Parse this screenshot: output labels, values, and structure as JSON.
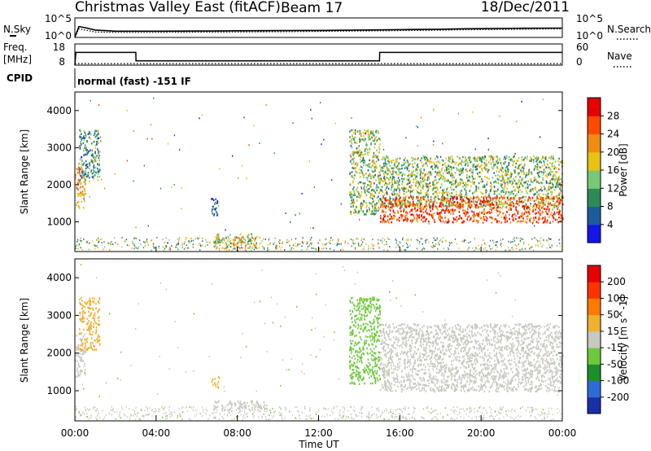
{
  "header": {
    "title": "Christmas Valley East (fitACF)",
    "beam": "Beam 17",
    "date": "18/Dec/2011"
  },
  "noise_panel": {
    "left_label": "N.Sky",
    "right_label": "N.Search",
    "left_ticks": [
      "10^5",
      "10^0"
    ],
    "right_ticks": [
      "10^5",
      "10^0"
    ]
  },
  "freq_panel": {
    "left_label_line1": "Freq.",
    "left_label_line2": "[MHz]",
    "right_label": "Nave",
    "left_ticks": [
      "18",
      "8"
    ],
    "right_ticks": [
      "60",
      "0"
    ]
  },
  "cpid": {
    "label": "CPID",
    "text": "normal (fast) -151 IF"
  },
  "chart_data": [
    {
      "type": "line",
      "title": "N.Sky / N.Search",
      "x": [
        0,
        0.2,
        0.5,
        1,
        2,
        3,
        4,
        6,
        8,
        10,
        12,
        14,
        16,
        18,
        19,
        20,
        22,
        24
      ],
      "series": [
        {
          "name": "N.Sky",
          "values": [
            0.1,
            2.8,
            2.5,
            1.9,
            1.6,
            1.6,
            1.6,
            1.65,
            1.7,
            1.75,
            1.8,
            1.9,
            2.0,
            2.1,
            2.2,
            2.25,
            2.35,
            2.4
          ]
        },
        {
          "name": "N.Search",
          "values": [
            0.1,
            2.2,
            1.9,
            1.4,
            1.3,
            1.3,
            1.3,
            1.35,
            1.4,
            1.45,
            1.55,
            1.65,
            1.75,
            1.85,
            1.95,
            2.0,
            2.1,
            2.2
          ]
        }
      ],
      "ylim": [
        0,
        5
      ],
      "xlim": [
        0,
        24
      ]
    },
    {
      "type": "line",
      "title": "Freq. / Nave",
      "x": [
        0,
        0.05,
        3.0,
        3.01,
        15.0,
        15.01,
        24
      ],
      "series": [
        {
          "name": "Freq.",
          "values": [
            8,
            14,
            14,
            10,
            10,
            14,
            14
          ]
        },
        {
          "name": "Nave",
          "values": [
            8.7,
            8.7,
            8.7,
            8.7,
            8.7,
            8.7,
            8.7
          ]
        }
      ],
      "ylim": [
        8,
        18
      ],
      "xlim": [
        0,
        24
      ]
    },
    {
      "type": "heatmap",
      "title": "Power [dB]",
      "xlabel": "",
      "ylabel": "Slant Range [km]",
      "xlim": [
        0,
        24
      ],
      "ylim": [
        200,
        4500
      ],
      "yticks": [
        1000,
        2000,
        3000,
        4000
      ],
      "colorbar": {
        "label": "Power [dB]",
        "ticks": [
          "28",
          "24",
          "20",
          "16",
          "12",
          "8",
          "4"
        ],
        "colors": [
          "#1515e6",
          "#1d5c9c",
          "#2e8b57",
          "#78c878",
          "#e6c214",
          "#f08c14",
          "#ff4a00",
          "#e60000"
        ]
      },
      "regions": [
        {
          "x": [
            0.0,
            0.5
          ],
          "y": [
            1400,
            2600
          ],
          "value": 20
        },
        {
          "x": [
            0.2,
            1.2
          ],
          "y": [
            2100,
            3500
          ],
          "value": 10
        },
        {
          "x": [
            6.7,
            7.1
          ],
          "y": [
            1150,
            1650
          ],
          "value": 6
        },
        {
          "x": [
            6.8,
            9.0
          ],
          "y": [
            300,
            700
          ],
          "value": 18
        },
        {
          "x": [
            13.5,
            15.0
          ],
          "y": [
            1200,
            3500
          ],
          "value": 14
        },
        {
          "x": [
            15.0,
            24.0
          ],
          "y": [
            1400,
            2800
          ],
          "value": 14
        },
        {
          "x": [
            15.0,
            24.0
          ],
          "y": [
            1000,
            1700
          ],
          "value": 26
        }
      ]
    },
    {
      "type": "heatmap",
      "title": "Velocity [m s^-1]",
      "xlabel": "Time UT",
      "ylabel": "Slant Range [km]",
      "xlim": [
        0,
        24
      ],
      "ylim": [
        200,
        4500
      ],
      "xticks": [
        "00:00",
        "04:00",
        "08:00",
        "12:00",
        "16:00",
        "20:00",
        "00:00"
      ],
      "yticks": [
        1000,
        2000,
        3000,
        4000
      ],
      "colorbar": {
        "label": "Velocity [m s^-1]",
        "ticks": [
          "200",
          "100",
          "50",
          "15",
          "-15",
          "-50",
          "-100",
          "-200"
        ],
        "colors": [
          "#1a2fa6",
          "#2e6bd6",
          "#1a8f2e",
          "#6dc93b",
          "#c8c8c0",
          "#f0b030",
          "#ff7a00",
          "#ff3300",
          "#e60000"
        ]
      },
      "regions": [
        {
          "x": [
            0.0,
            0.5
          ],
          "y": [
            1400,
            2600
          ],
          "value": 0
        },
        {
          "x": [
            0.2,
            1.2
          ],
          "y": [
            2100,
            3500
          ],
          "value": -40
        },
        {
          "x": [
            6.7,
            7.1
          ],
          "y": [
            1100,
            1400
          ],
          "value": -40
        },
        {
          "x": [
            6.8,
            9.5
          ],
          "y": [
            500,
            750
          ],
          "value": 0
        },
        {
          "x": [
            13.5,
            15.0
          ],
          "y": [
            1200,
            3500
          ],
          "value": 30
        },
        {
          "x": [
            15.0,
            24.0
          ],
          "y": [
            1000,
            2800
          ],
          "value": 0
        }
      ]
    }
  ]
}
